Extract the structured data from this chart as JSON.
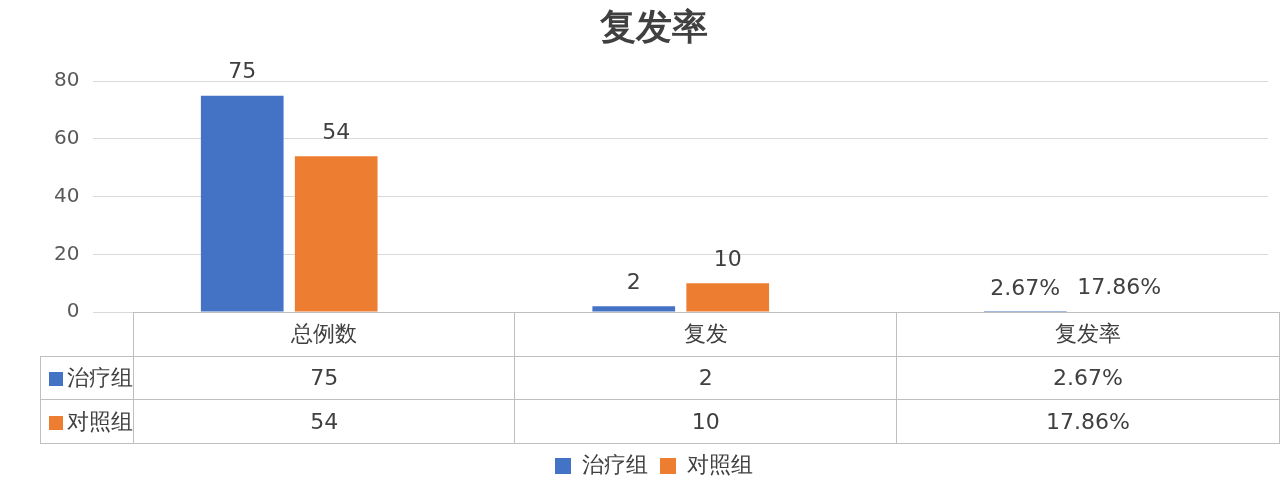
{
  "chart_data": {
    "type": "bar",
    "title": "复发率",
    "categories": [
      "总例数",
      "复发",
      "复发率"
    ],
    "series": [
      {
        "name": "治疗组",
        "color": "#4472c4",
        "values": [
          75,
          2,
          0.0267
        ],
        "value_labels": [
          "75",
          "2",
          "2.67%"
        ]
      },
      {
        "name": "对照组",
        "color": "#ed7d31",
        "values": [
          54,
          10,
          0.1786
        ],
        "value_labels": [
          "54",
          "10",
          "17.86%"
        ]
      }
    ],
    "ylim": [
      0,
      80
    ],
    "yticks": [
      0,
      20,
      40,
      60,
      80
    ],
    "grid": "y",
    "legend": "bottom"
  }
}
